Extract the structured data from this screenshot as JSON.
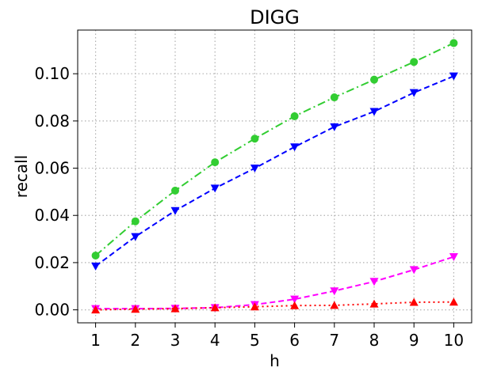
{
  "chart_data": {
    "type": "line",
    "title": "DIGG",
    "xlabel": "h",
    "ylabel": "recall",
    "x": [
      1,
      2,
      3,
      4,
      5,
      6,
      7,
      8,
      9,
      10
    ],
    "xticks": [
      "1",
      "2",
      "3",
      "4",
      "5",
      "6",
      "7",
      "8",
      "9",
      "10"
    ],
    "yticks": [
      "0.00",
      "0.02",
      "0.04",
      "0.06",
      "0.08",
      "0.10"
    ],
    "ylim": [
      -0.0055,
      0.1185
    ],
    "xlim": [
      0.55,
      10.45
    ],
    "grid": true,
    "series": [
      {
        "color": "#32cd32",
        "linestyle": "dashdot",
        "marker": "circle",
        "values": [
          0.023,
          0.0375,
          0.0505,
          0.0625,
          0.0725,
          0.082,
          0.09,
          0.0975,
          0.105,
          0.113
        ]
      },
      {
        "color": "#0000ff",
        "linestyle": "dashed",
        "marker": "triangle-down",
        "values": [
          0.0185,
          0.031,
          0.042,
          0.0515,
          0.06,
          0.069,
          0.0775,
          0.084,
          0.092,
          0.099
        ]
      },
      {
        "color": "#ff00ff",
        "linestyle": "dashed",
        "marker": "triangle-down",
        "values": [
          0.0005,
          0.0005,
          0.0006,
          0.0009,
          0.0022,
          0.0045,
          0.008,
          0.012,
          0.017,
          0.0225
        ]
      },
      {
        "color": "#ff0000",
        "linestyle": "dotted",
        "marker": "triangle-up",
        "values": [
          0.0,
          0.0003,
          0.0005,
          0.0009,
          0.0013,
          0.0018,
          0.0019,
          0.0025,
          0.0032,
          0.0033
        ]
      }
    ]
  }
}
